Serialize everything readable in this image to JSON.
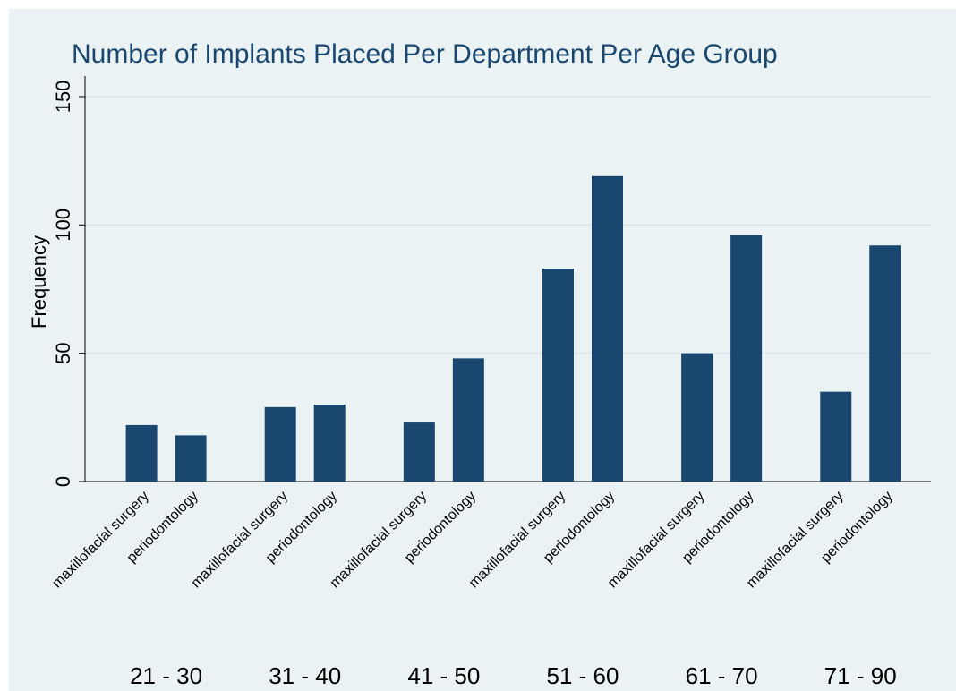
{
  "chart_data": {
    "type": "bar",
    "title": "Number of Implants Placed Per Department Per Age Group",
    "y_label": "Frequency",
    "categories": [
      "21 - 30",
      "31 - 40",
      "41 - 50",
      "51 - 60",
      "61 - 70",
      "71 - 90"
    ],
    "series": [
      {
        "name": "maxillofacial surgery",
        "color": "#1a476f",
        "values": [
          22,
          29,
          23,
          83,
          50,
          35
        ]
      },
      {
        "name": "periodontology",
        "color": "#1a476f",
        "values": [
          18,
          30,
          48,
          119,
          96,
          92
        ]
      }
    ],
    "ylim": [
      0,
      158
    ],
    "yticks": [
      0,
      50,
      100,
      150
    ],
    "grid": true
  }
}
